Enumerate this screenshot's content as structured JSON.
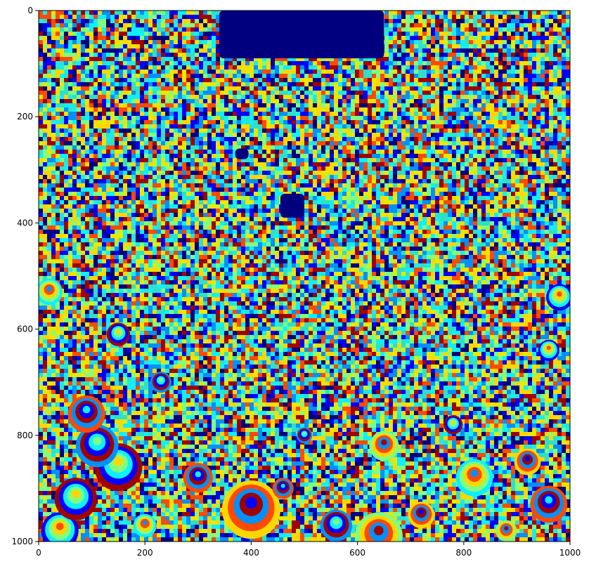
{
  "chart_data": {
    "type": "heatmap",
    "title": "",
    "xlabel": "",
    "ylabel": "",
    "colormap": "jet",
    "xlim": [
      0,
      1000
    ],
    "ylim": [
      1000,
      0
    ],
    "x_ticks": [
      0,
      200,
      400,
      600,
      800,
      1000
    ],
    "y_ticks": [
      0,
      200,
      400,
      600,
      800,
      1000
    ],
    "grid": false,
    "legend": "none",
    "palette": [
      "#00007f",
      "#0000ff",
      "#0090ff",
      "#0ff0ff",
      "#80ff80",
      "#ffd700",
      "#ff4a00",
      "#a00000",
      "#2fe0c8",
      "#e8e800"
    ],
    "features": [
      {
        "label": "inset-region-top",
        "x": [
          340,
          650
        ],
        "y": [
          0,
          90
        ],
        "color": "#00007f"
      },
      {
        "label": "inset-blob-center",
        "x": [
          455,
          500
        ],
        "y": [
          345,
          390
        ],
        "color": "#00007f"
      },
      {
        "label": "inset-blob-small",
        "x": [
          370,
          395
        ],
        "y": [
          260,
          280
        ],
        "color": "#00007f"
      }
    ],
    "bubbles": [
      {
        "x": 150,
        "y": 860,
        "r": 45
      },
      {
        "x": 110,
        "y": 820,
        "r": 40
      },
      {
        "x": 90,
        "y": 760,
        "r": 35
      },
      {
        "x": 400,
        "y": 940,
        "r": 55
      },
      {
        "x": 640,
        "y": 990,
        "r": 45
      },
      {
        "x": 820,
        "y": 880,
        "r": 35
      },
      {
        "x": 40,
        "y": 980,
        "r": 35
      },
      {
        "x": 70,
        "y": 920,
        "r": 40
      },
      {
        "x": 560,
        "y": 970,
        "r": 30
      },
      {
        "x": 960,
        "y": 930,
        "r": 35
      },
      {
        "x": 920,
        "y": 850,
        "r": 25
      },
      {
        "x": 650,
        "y": 820,
        "r": 28
      },
      {
        "x": 20,
        "y": 530,
        "r": 25
      },
      {
        "x": 980,
        "y": 540,
        "r": 25
      },
      {
        "x": 150,
        "y": 610,
        "r": 22
      },
      {
        "x": 230,
        "y": 700,
        "r": 20
      },
      {
        "x": 300,
        "y": 880,
        "r": 28
      },
      {
        "x": 720,
        "y": 950,
        "r": 25
      },
      {
        "x": 880,
        "y": 980,
        "r": 20
      },
      {
        "x": 200,
        "y": 970,
        "r": 22
      },
      {
        "x": 960,
        "y": 640,
        "r": 20
      },
      {
        "x": 780,
        "y": 780,
        "r": 18
      },
      {
        "x": 500,
        "y": 800,
        "r": 15
      },
      {
        "x": 460,
        "y": 900,
        "r": 20
      }
    ]
  }
}
